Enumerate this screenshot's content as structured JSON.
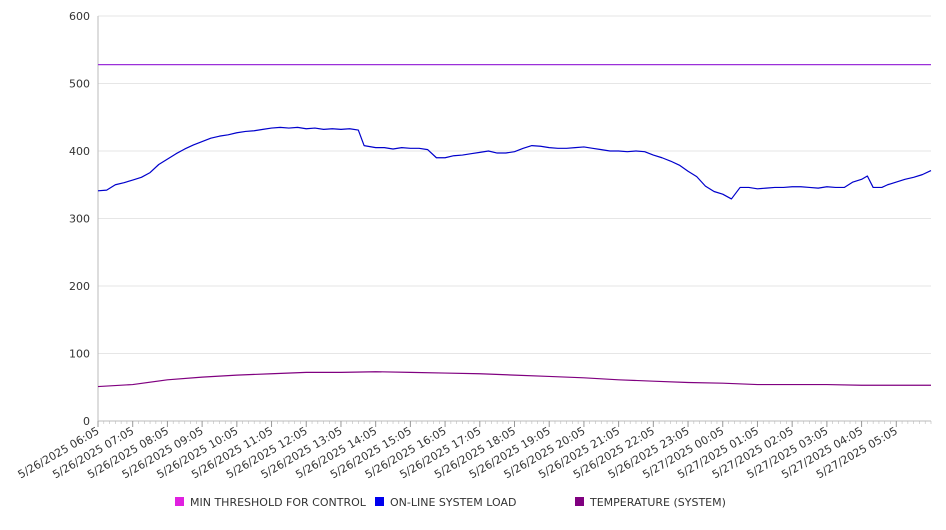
{
  "chart_data": {
    "type": "line",
    "title": "",
    "xlabel": "",
    "ylabel": "",
    "ylim": [
      0,
      600
    ],
    "yticks": [
      0,
      100,
      200,
      300,
      400,
      500,
      600
    ],
    "grid": true,
    "legend_position": "bottom",
    "x_tick_labels": [
      "5/26/2025 06:05",
      "5/26/2025 07:05",
      "5/26/2025 08:05",
      "5/26/2025 09:05",
      "5/26/2025 10:05",
      "5/26/2025 11:05",
      "5/26/2025 12:05",
      "5/26/2025 13:05",
      "5/26/2025 14:05",
      "5/26/2025 15:05",
      "5/26/2025 16:05",
      "5/26/2025 17:05",
      "5/26/2025 18:05",
      "5/26/2025 19:05",
      "5/26/2025 20:05",
      "5/26/2025 21:05",
      "5/26/2025 22:05",
      "5/26/2025 23:05",
      "5/27/2025 00:05",
      "5/27/2025 01:05",
      "5/27/2025 02:05",
      "5/27/2025 03:05",
      "5/27/2025 04:05",
      "5/27/2025 05:05"
    ],
    "x_start": "5/26/2025 06:05",
    "x_end": "5/27/2025 06:05",
    "series": [
      {
        "name": "MIN THRESHOLD FOR CONTROL",
        "color": "#9b30d9",
        "legend_color": "#e020e0",
        "points": [
          [
            "5/26/2025 06:05",
            528
          ],
          [
            "5/27/2025 06:05",
            528
          ]
        ]
      },
      {
        "name": "ON-LINE SYSTEM LOAD",
        "color": "#0000cc",
        "legend_color": "#0000ee",
        "points": [
          [
            "5/26/2025 06:05",
            341
          ],
          [
            "5/26/2025 06:20",
            342
          ],
          [
            "5/26/2025 06:35",
            350
          ],
          [
            "5/26/2025 06:50",
            353
          ],
          [
            "5/26/2025 07:05",
            357
          ],
          [
            "5/26/2025 07:20",
            361
          ],
          [
            "5/26/2025 07:35",
            368
          ],
          [
            "5/26/2025 07:50",
            380
          ],
          [
            "5/26/2025 08:05",
            388
          ],
          [
            "5/26/2025 08:20",
            396
          ],
          [
            "5/26/2025 08:35",
            403
          ],
          [
            "5/26/2025 08:50",
            409
          ],
          [
            "5/26/2025 09:05",
            414
          ],
          [
            "5/26/2025 09:20",
            419
          ],
          [
            "5/26/2025 09:35",
            422
          ],
          [
            "5/26/2025 09:50",
            424
          ],
          [
            "5/26/2025 10:05",
            427
          ],
          [
            "5/26/2025 10:20",
            429
          ],
          [
            "5/26/2025 10:35",
            430
          ],
          [
            "5/26/2025 10:50",
            432
          ],
          [
            "5/26/2025 11:05",
            434
          ],
          [
            "5/26/2025 11:20",
            435
          ],
          [
            "5/26/2025 11:35",
            434
          ],
          [
            "5/26/2025 11:50",
            435
          ],
          [
            "5/26/2025 12:05",
            433
          ],
          [
            "5/26/2025 12:20",
            434
          ],
          [
            "5/26/2025 12:35",
            432
          ],
          [
            "5/26/2025 12:50",
            433
          ],
          [
            "5/26/2025 13:05",
            432
          ],
          [
            "5/26/2025 13:20",
            433
          ],
          [
            "5/26/2025 13:35",
            431
          ],
          [
            "5/26/2025 13:45",
            408
          ],
          [
            "5/26/2025 14:05",
            405
          ],
          [
            "5/26/2025 14:20",
            405
          ],
          [
            "5/26/2025 14:35",
            403
          ],
          [
            "5/26/2025 14:50",
            405
          ],
          [
            "5/26/2025 15:05",
            404
          ],
          [
            "5/26/2025 15:20",
            404
          ],
          [
            "5/26/2025 15:35",
            402
          ],
          [
            "5/26/2025 15:50",
            390
          ],
          [
            "5/26/2025 16:05",
            390
          ],
          [
            "5/26/2025 16:20",
            393
          ],
          [
            "5/26/2025 16:35",
            394
          ],
          [
            "5/26/2025 16:50",
            396
          ],
          [
            "5/26/2025 17:05",
            398
          ],
          [
            "5/26/2025 17:20",
            400
          ],
          [
            "5/26/2025 17:35",
            397
          ],
          [
            "5/26/2025 17:50",
            397
          ],
          [
            "5/26/2025 18:05",
            399
          ],
          [
            "5/26/2025 18:20",
            404
          ],
          [
            "5/26/2025 18:35",
            408
          ],
          [
            "5/26/2025 18:50",
            407
          ],
          [
            "5/26/2025 19:05",
            405
          ],
          [
            "5/26/2025 19:20",
            404
          ],
          [
            "5/26/2025 19:35",
            404
          ],
          [
            "5/26/2025 19:50",
            405
          ],
          [
            "5/26/2025 20:05",
            406
          ],
          [
            "5/26/2025 20:20",
            404
          ],
          [
            "5/26/2025 20:35",
            402
          ],
          [
            "5/26/2025 20:50",
            400
          ],
          [
            "5/26/2025 21:05",
            400
          ],
          [
            "5/26/2025 21:20",
            399
          ],
          [
            "5/26/2025 21:35",
            400
          ],
          [
            "5/26/2025 21:50",
            399
          ],
          [
            "5/26/2025 22:05",
            394
          ],
          [
            "5/26/2025 22:20",
            390
          ],
          [
            "5/26/2025 22:35",
            385
          ],
          [
            "5/26/2025 22:50",
            379
          ],
          [
            "5/26/2025 23:05",
            370
          ],
          [
            "5/26/2025 23:20",
            362
          ],
          [
            "5/26/2025 23:35",
            348
          ],
          [
            "5/26/2025 23:50",
            340
          ],
          [
            "5/27/2025 00:05",
            336
          ],
          [
            "5/27/2025 00:20",
            329
          ],
          [
            "5/27/2025 00:35",
            346
          ],
          [
            "5/27/2025 00:50",
            346
          ],
          [
            "5/27/2025 01:05",
            344
          ],
          [
            "5/27/2025 01:20",
            345
          ],
          [
            "5/27/2025 01:35",
            346
          ],
          [
            "5/27/2025 01:50",
            346
          ],
          [
            "5/27/2025 02:05",
            347
          ],
          [
            "5/27/2025 02:20",
            347
          ],
          [
            "5/27/2025 02:35",
            346
          ],
          [
            "5/27/2025 02:50",
            345
          ],
          [
            "5/27/2025 03:05",
            347
          ],
          [
            "5/27/2025 03:20",
            346
          ],
          [
            "5/27/2025 03:35",
            346
          ],
          [
            "5/27/2025 03:50",
            354
          ],
          [
            "5/27/2025 04:05",
            358
          ],
          [
            "5/27/2025 04:15",
            363
          ],
          [
            "5/27/2025 04:25",
            346
          ],
          [
            "5/27/2025 04:40",
            346
          ],
          [
            "5/27/2025 04:50",
            350
          ],
          [
            "5/27/2025 05:05",
            354
          ],
          [
            "5/27/2025 05:20",
            358
          ],
          [
            "5/27/2025 05:35",
            361
          ],
          [
            "5/27/2025 05:50",
            365
          ],
          [
            "5/27/2025 06:05",
            371
          ]
        ]
      },
      {
        "name": "TEMPERATURE (SYSTEM)",
        "color": "#800080",
        "legend_color": "#800080",
        "points": [
          [
            "5/26/2025 06:05",
            51
          ],
          [
            "5/26/2025 07:05",
            54
          ],
          [
            "5/26/2025 08:05",
            61
          ],
          [
            "5/26/2025 09:05",
            65
          ],
          [
            "5/26/2025 10:05",
            68
          ],
          [
            "5/26/2025 11:05",
            70
          ],
          [
            "5/26/2025 12:05",
            72
          ],
          [
            "5/26/2025 13:05",
            72
          ],
          [
            "5/26/2025 14:05",
            73
          ],
          [
            "5/26/2025 15:05",
            72
          ],
          [
            "5/26/2025 16:05",
            71
          ],
          [
            "5/26/2025 17:05",
            70
          ],
          [
            "5/26/2025 18:05",
            68
          ],
          [
            "5/26/2025 19:05",
            66
          ],
          [
            "5/26/2025 20:05",
            64
          ],
          [
            "5/26/2025 21:05",
            61
          ],
          [
            "5/26/2025 22:05",
            59
          ],
          [
            "5/26/2025 23:05",
            57
          ],
          [
            "5/27/2025 00:05",
            56
          ],
          [
            "5/27/2025 01:05",
            54
          ],
          [
            "5/27/2025 02:05",
            54
          ],
          [
            "5/27/2025 03:05",
            54
          ],
          [
            "5/27/2025 04:05",
            53
          ],
          [
            "5/27/2025 05:05",
            53
          ],
          [
            "5/27/2025 06:05",
            53
          ]
        ]
      }
    ]
  }
}
